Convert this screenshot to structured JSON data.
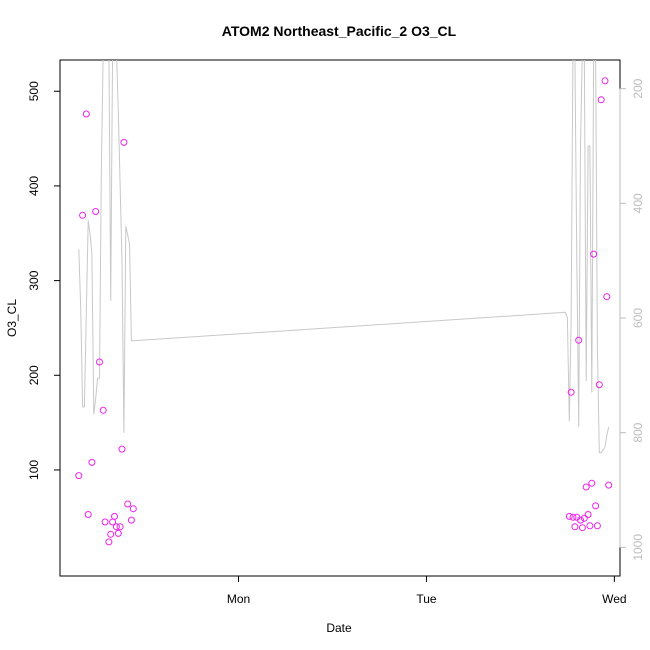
{
  "chart_data": {
    "type": "scatter",
    "title": "ATOM2 Northeast_Pacific_2 O3_CL",
    "xlabel": "Date",
    "ylabel": "O3_CL",
    "x_unit": "days",
    "xlim": [
      -0.95,
      2.03
    ],
    "ylim": [
      -12,
      533
    ],
    "x_ticks": [
      0,
      1,
      2
    ],
    "x_tick_labels": [
      "Mon",
      "Tue",
      "Wed"
    ],
    "y_ticks": [
      100,
      200,
      300,
      400,
      500
    ],
    "y_tick_labels": [
      "100",
      "200",
      "300",
      "400",
      "500"
    ],
    "right_axis": {
      "color": "#bdbdbd",
      "lim": [
        1050,
        150
      ],
      "ticks": [
        200,
        400,
        600,
        800,
        1000
      ],
      "tick_labels": [
        "200",
        "400",
        "600",
        "800",
        "1000"
      ]
    },
    "series": [
      {
        "kind": "points",
        "color": "#ee22ee",
        "points": [
          [
            -0.85,
            94
          ],
          [
            -0.83,
            369
          ],
          [
            -0.81,
            476
          ],
          [
            -0.8,
            53
          ],
          [
            -0.78,
            108
          ],
          [
            -0.76,
            373
          ],
          [
            -0.74,
            214
          ],
          [
            -0.72,
            163
          ],
          [
            -0.71,
            45
          ],
          [
            -0.69,
            24
          ],
          [
            -0.68,
            32
          ],
          [
            -0.67,
            45
          ],
          [
            -0.66,
            51
          ],
          [
            -0.65,
            40
          ],
          [
            -0.64,
            33
          ],
          [
            -0.63,
            40
          ],
          [
            -0.62,
            122
          ],
          [
            -0.61,
            446
          ],
          [
            -0.59,
            64
          ],
          [
            -0.57,
            47
          ],
          [
            -0.56,
            59
          ],
          [
            1.76,
            51
          ],
          [
            1.77,
            182
          ],
          [
            1.78,
            50
          ],
          [
            1.79,
            40
          ],
          [
            1.8,
            50
          ],
          [
            1.81,
            237
          ],
          [
            1.82,
            47
          ],
          [
            1.83,
            39
          ],
          [
            1.84,
            49
          ],
          [
            1.85,
            82
          ],
          [
            1.86,
            53
          ],
          [
            1.87,
            41
          ],
          [
            1.88,
            86
          ],
          [
            1.89,
            328
          ],
          [
            1.9,
            62
          ],
          [
            1.91,
            41
          ],
          [
            1.92,
            190
          ],
          [
            1.93,
            491
          ],
          [
            1.95,
            511
          ],
          [
            1.96,
            283
          ],
          [
            1.97,
            84
          ]
        ]
      },
      {
        "kind": "line",
        "color": "#c8c8c8",
        "axis": "right",
        "points": [
          [
            -0.85,
            480
          ],
          [
            -0.84,
            582
          ],
          [
            -0.83,
            755
          ],
          [
            -0.82,
            755
          ],
          [
            -0.8,
            430
          ],
          [
            -0.79,
            454
          ],
          [
            -0.78,
            490
          ],
          [
            -0.77,
            768
          ],
          [
            -0.76,
            740
          ],
          [
            -0.75,
            705
          ],
          [
            -0.74,
            705
          ],
          [
            -0.73,
            350
          ],
          [
            -0.72,
            130
          ],
          [
            -0.71,
            60
          ],
          [
            -0.69,
            130
          ],
          [
            -0.68,
            570
          ],
          [
            -0.67,
            130
          ],
          [
            -0.66,
            100
          ],
          [
            -0.65,
            130
          ],
          [
            -0.64,
            240
          ],
          [
            -0.62,
            500
          ],
          [
            -0.61,
            800
          ],
          [
            -0.6,
            440
          ],
          [
            -0.59,
            455
          ],
          [
            -0.58,
            470
          ],
          [
            -0.57,
            640
          ],
          [
            1.74,
            590
          ],
          [
            1.75,
            600
          ],
          [
            1.76,
            780
          ],
          [
            1.77,
            610
          ],
          [
            1.78,
            120
          ],
          [
            1.79,
            140
          ],
          [
            1.8,
            500
          ],
          [
            1.81,
            790
          ],
          [
            1.82,
            300
          ],
          [
            1.83,
            130
          ],
          [
            1.84,
            130
          ],
          [
            1.85,
            710
          ],
          [
            1.86,
            300
          ],
          [
            1.87,
            300
          ],
          [
            1.88,
            730
          ],
          [
            1.89,
            130
          ],
          [
            1.9,
            130
          ],
          [
            1.91,
            650
          ],
          [
            1.92,
            835
          ],
          [
            1.93,
            835
          ],
          [
            1.95,
            825
          ],
          [
            1.96,
            805
          ],
          [
            1.97,
            790
          ]
        ]
      }
    ]
  }
}
